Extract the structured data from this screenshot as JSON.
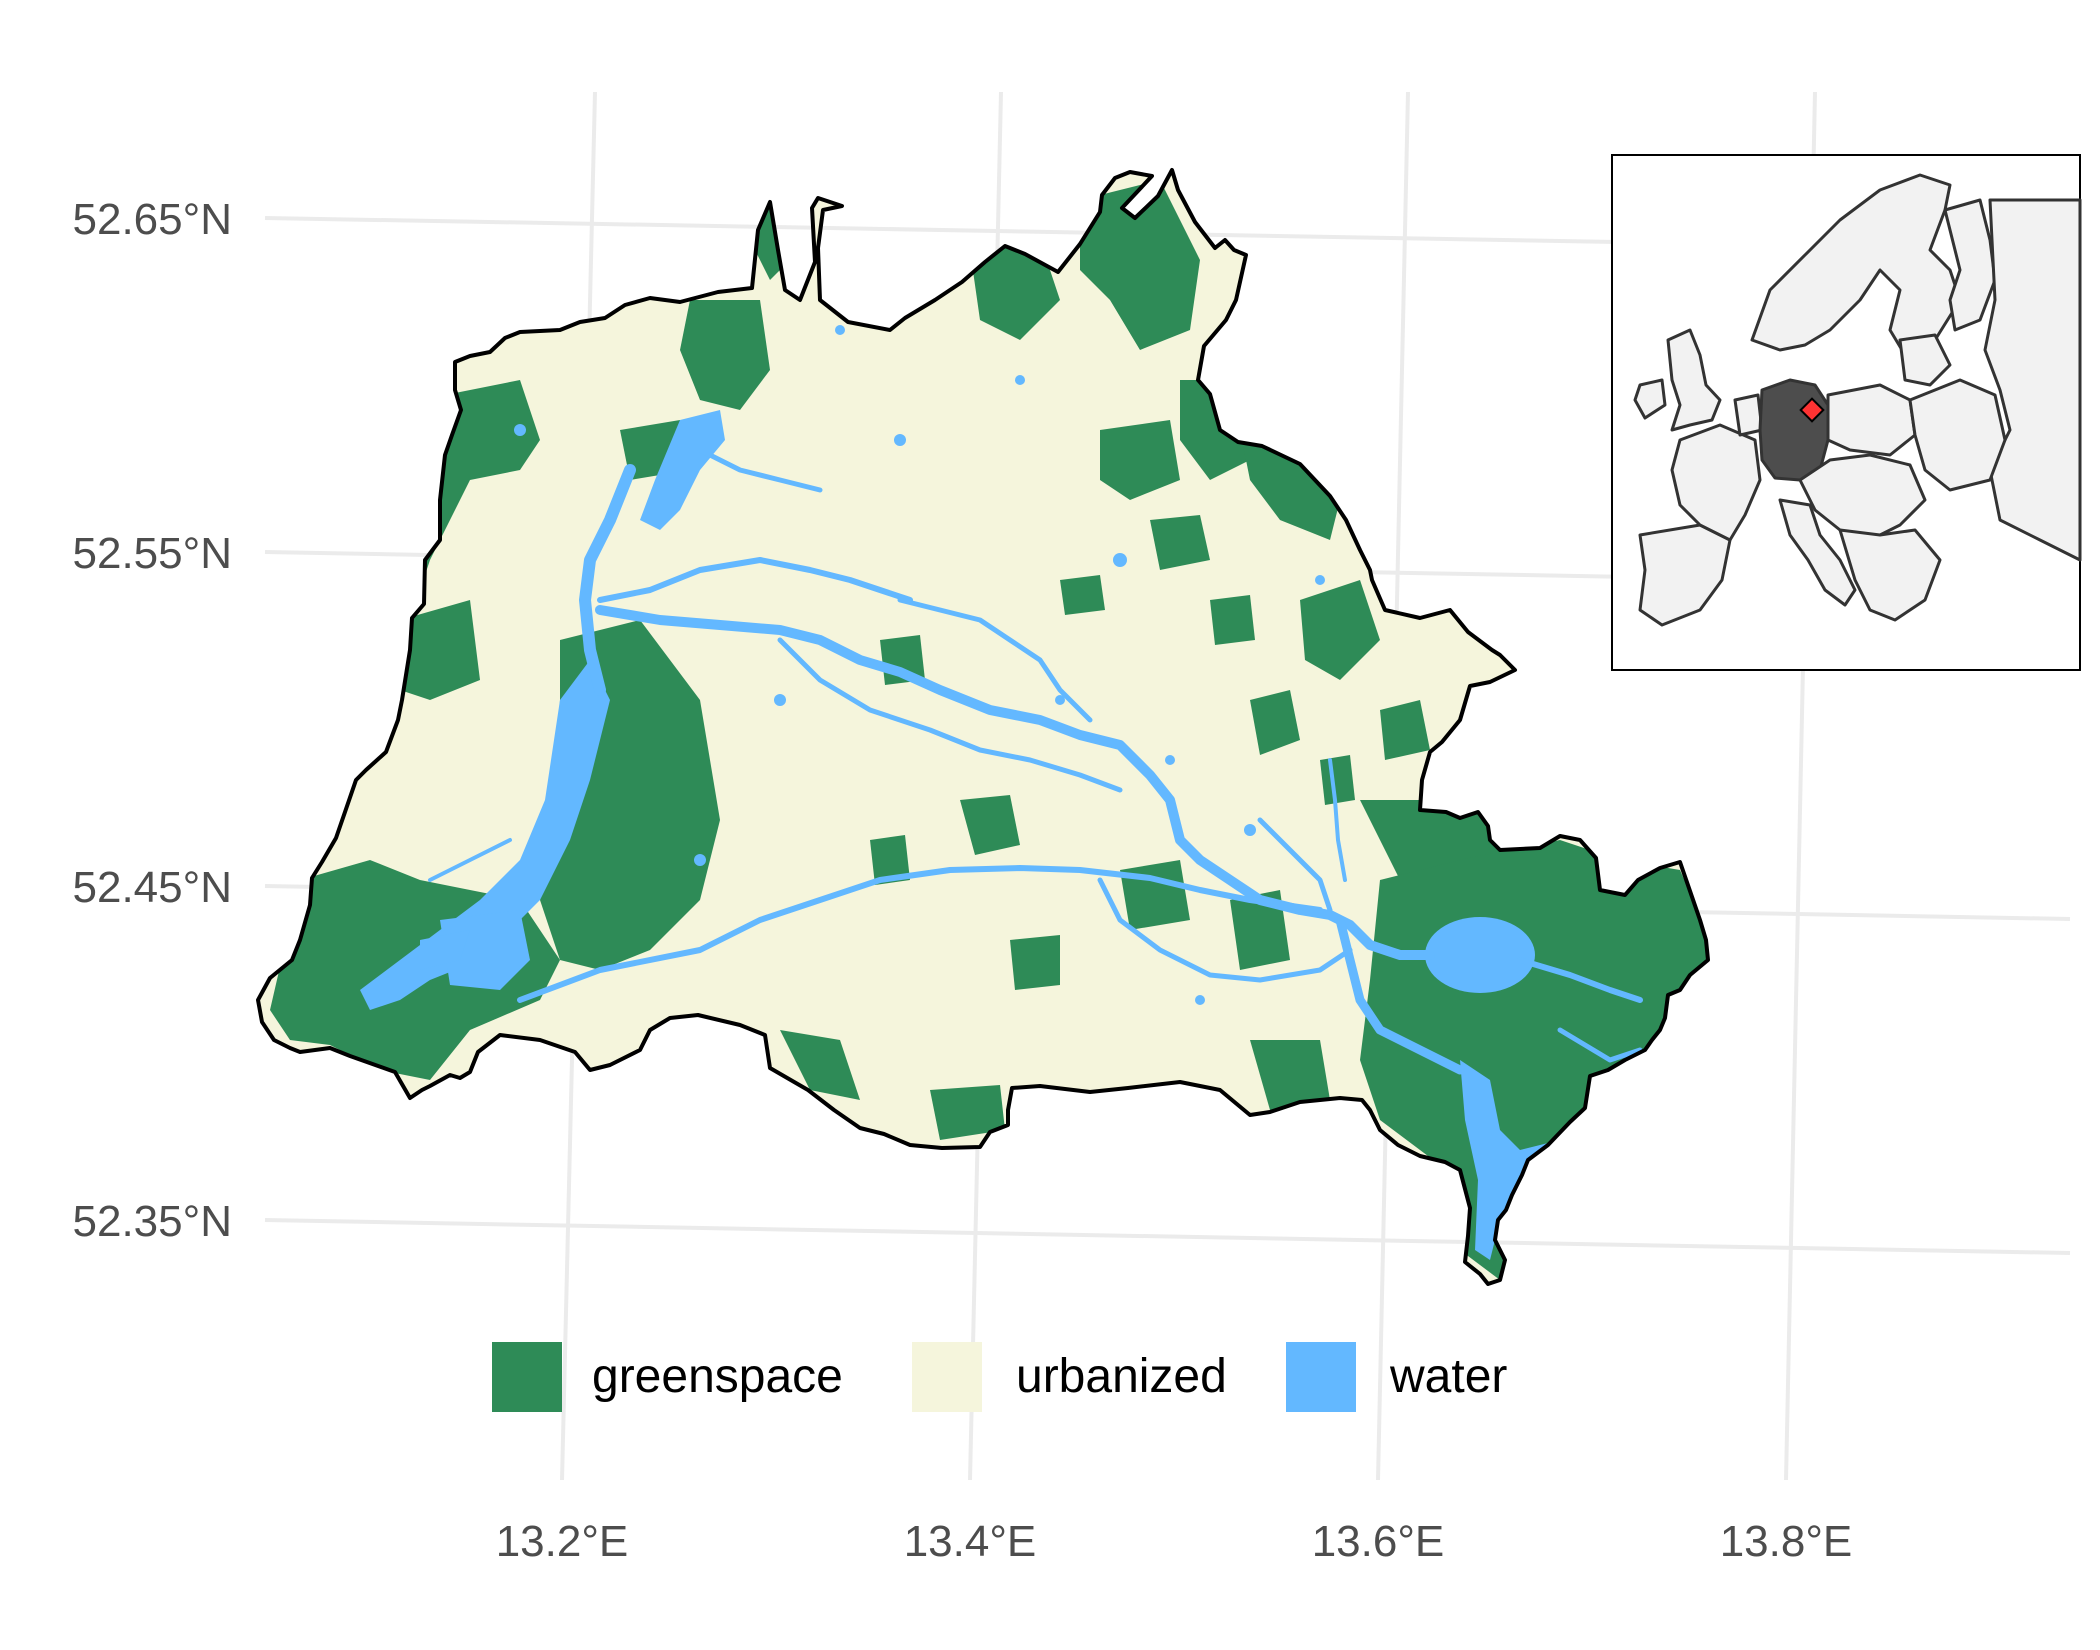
{
  "axes": {
    "lat_labels": [
      "52.65°N",
      "52.55°N",
      "52.45°N",
      "52.35°N"
    ],
    "lon_labels": [
      "13.2°E",
      "13.4°E",
      "13.6°E",
      "13.8°E"
    ]
  },
  "legend": {
    "position": "bottom",
    "items": [
      {
        "label": "greenspace",
        "color": "#2e8b57"
      },
      {
        "label": "urbanized",
        "color": "#f5f5dc"
      },
      {
        "label": "water",
        "color": "#63b8ff"
      }
    ]
  },
  "inset": {
    "highlight_color": "#4d4d4d",
    "country_fill": "#f2f2f2",
    "marker_color": "#ff3333"
  },
  "colors": {
    "grid": "#ebebeb",
    "boundary": "#000000"
  }
}
